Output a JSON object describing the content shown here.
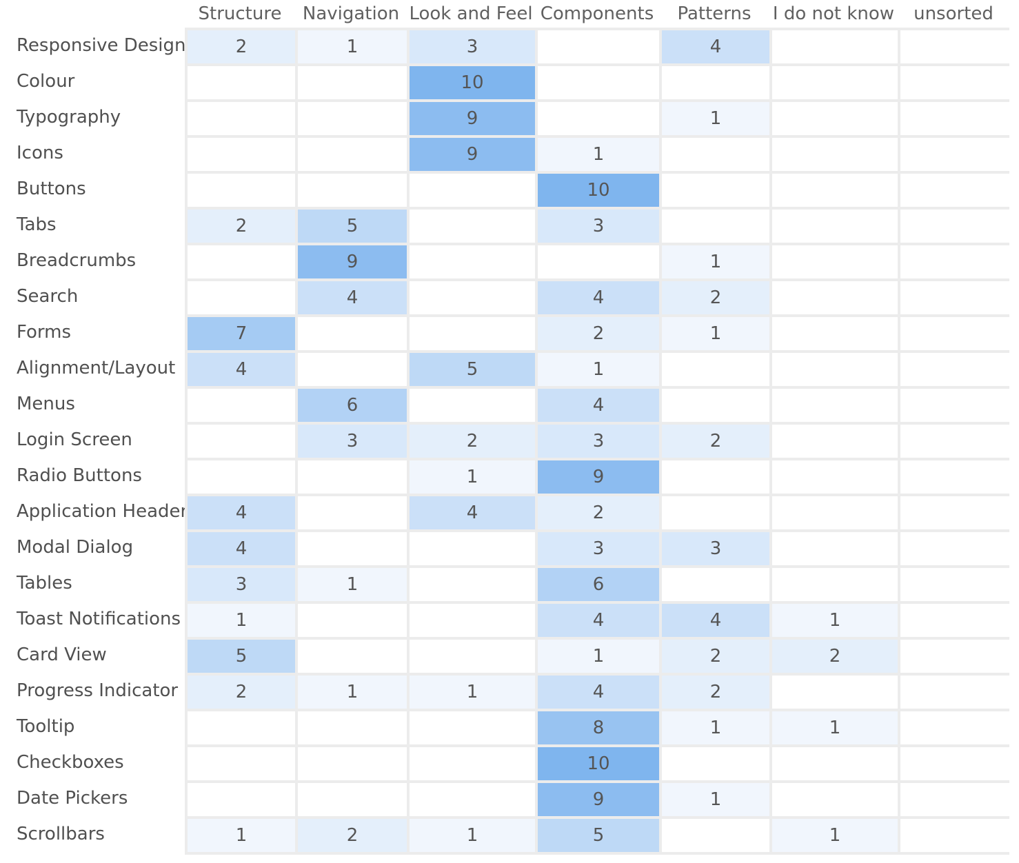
{
  "chart_data": {
    "type": "heatmap",
    "title": "",
    "columns": [
      "Structure",
      "Navigation",
      "Look and Feel",
      "Components",
      "Patterns",
      "I do not know",
      "unsorted"
    ],
    "rows": [
      {
        "label": "Responsive Design",
        "values": [
          2,
          1,
          3,
          null,
          4,
          null,
          null
        ]
      },
      {
        "label": "Colour",
        "values": [
          null,
          null,
          10,
          null,
          null,
          null,
          null
        ]
      },
      {
        "label": "Typography",
        "values": [
          null,
          null,
          9,
          null,
          1,
          null,
          null
        ]
      },
      {
        "label": "Icons",
        "values": [
          null,
          null,
          9,
          1,
          null,
          null,
          null
        ]
      },
      {
        "label": "Buttons",
        "values": [
          null,
          null,
          null,
          10,
          null,
          null,
          null
        ]
      },
      {
        "label": "Tabs",
        "values": [
          2,
          5,
          null,
          3,
          null,
          null,
          null
        ]
      },
      {
        "label": "Breadcrumbs",
        "values": [
          null,
          9,
          null,
          null,
          1,
          null,
          null
        ]
      },
      {
        "label": "Search",
        "values": [
          null,
          4,
          null,
          4,
          2,
          null,
          null
        ]
      },
      {
        "label": "Forms",
        "values": [
          7,
          null,
          null,
          2,
          1,
          null,
          null
        ]
      },
      {
        "label": "Alignment/Layout",
        "values": [
          4,
          null,
          5,
          1,
          null,
          null,
          null
        ]
      },
      {
        "label": "Menus",
        "values": [
          null,
          6,
          null,
          4,
          null,
          null,
          null
        ]
      },
      {
        "label": "Login Screen",
        "values": [
          null,
          3,
          2,
          3,
          2,
          null,
          null
        ]
      },
      {
        "label": "Radio Buttons",
        "values": [
          null,
          null,
          1,
          9,
          null,
          null,
          null
        ]
      },
      {
        "label": "Application Header",
        "values": [
          4,
          null,
          4,
          2,
          null,
          null,
          null
        ]
      },
      {
        "label": "Modal Dialog",
        "values": [
          4,
          null,
          null,
          3,
          3,
          null,
          null
        ]
      },
      {
        "label": "Tables",
        "values": [
          3,
          1,
          null,
          6,
          null,
          null,
          null
        ]
      },
      {
        "label": "Toast Notifications",
        "values": [
          1,
          null,
          null,
          4,
          4,
          1,
          null
        ]
      },
      {
        "label": "Card View",
        "values": [
          5,
          null,
          null,
          1,
          2,
          2,
          null
        ]
      },
      {
        "label": "Progress Indicator",
        "values": [
          2,
          1,
          1,
          4,
          2,
          null,
          null
        ]
      },
      {
        "label": "Tooltip",
        "values": [
          null,
          null,
          null,
          8,
          1,
          1,
          null
        ]
      },
      {
        "label": "Checkboxes",
        "values": [
          null,
          null,
          null,
          10,
          null,
          null,
          null
        ]
      },
      {
        "label": "Date Pickers",
        "values": [
          null,
          null,
          null,
          9,
          1,
          null,
          null
        ]
      },
      {
        "label": "Scrollbars",
        "values": [
          1,
          2,
          1,
          5,
          null,
          1,
          null
        ]
      }
    ],
    "value_range": [
      0,
      10
    ],
    "colors": {
      "empty": "#ffffff",
      "low": "#f1f6fd",
      "high": "#7fb5ee",
      "grid": "#ececec",
      "text": "#555555"
    }
  }
}
